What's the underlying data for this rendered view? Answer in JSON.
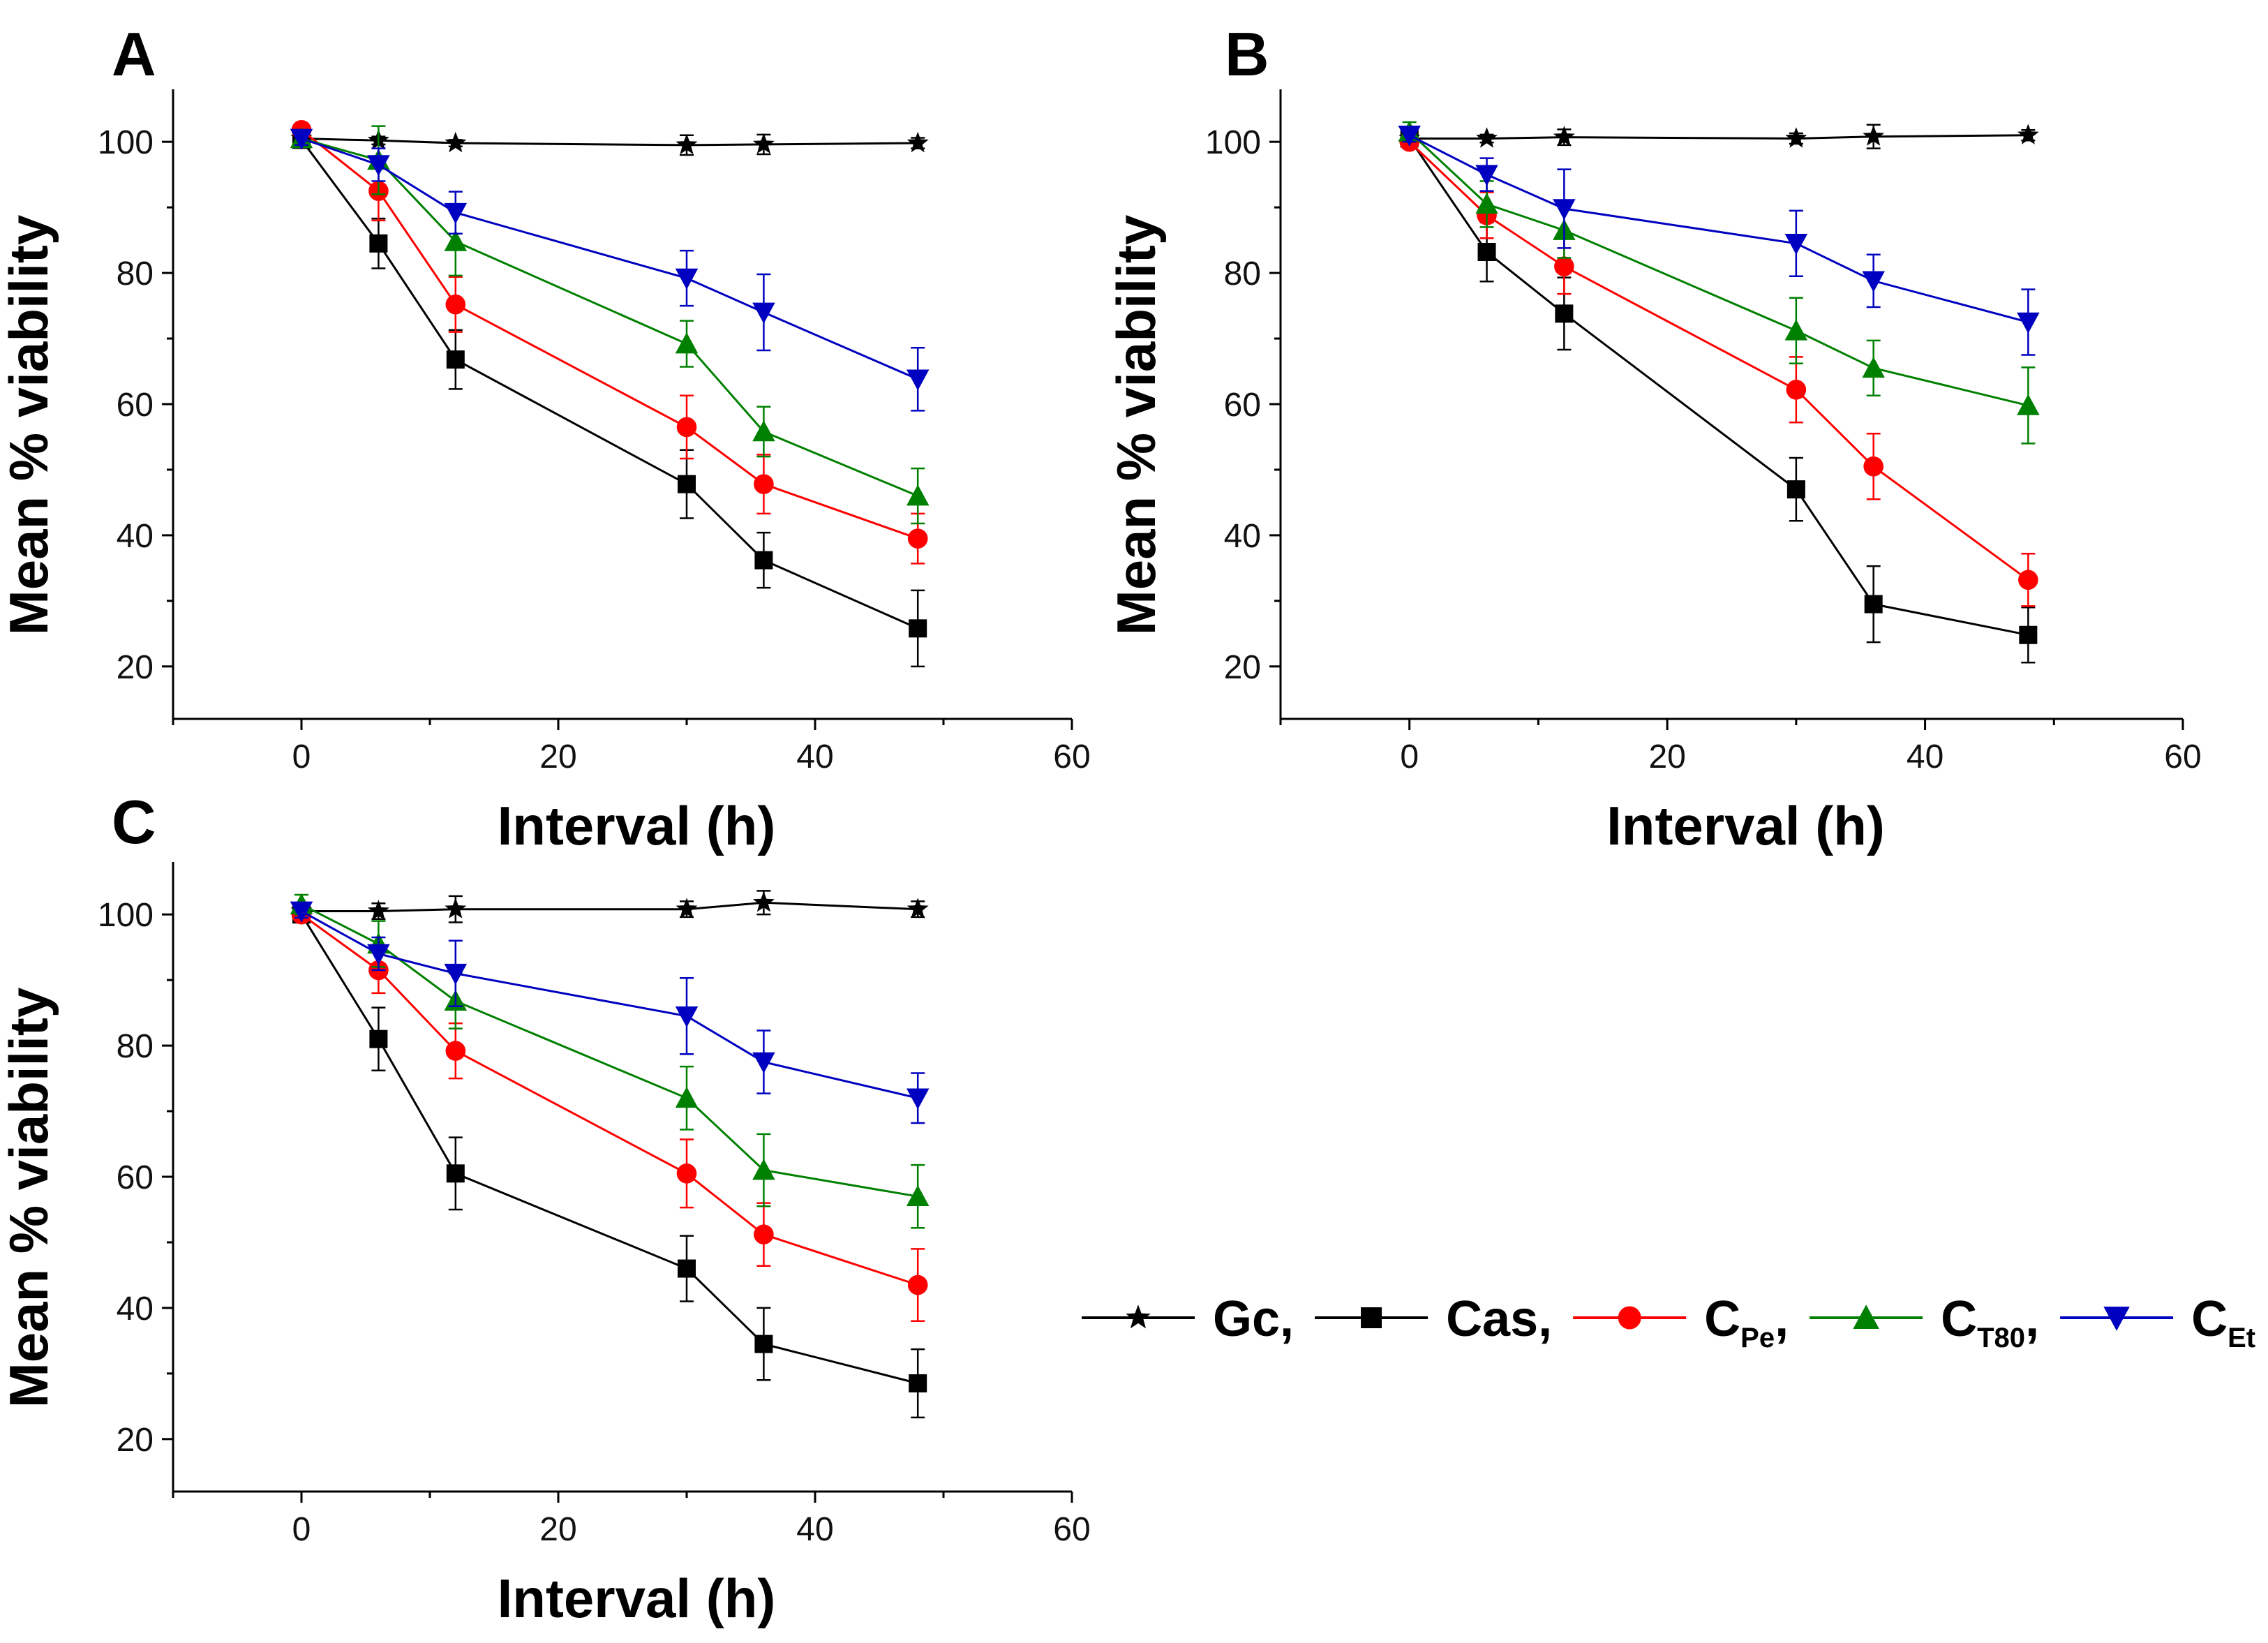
{
  "legend": [
    {
      "name": "Gc",
      "sub": "",
      "suffix": ",",
      "color": "#000000",
      "marker": "star"
    },
    {
      "name": "Cas",
      "sub": "",
      "suffix": ",",
      "color": "#000000",
      "marker": "square"
    },
    {
      "name": "C",
      "sub": "Pe",
      "suffix": ",",
      "color": "#ff0000",
      "marker": "circle"
    },
    {
      "name": "C",
      "sub": "T80",
      "suffix": ",",
      "color": "#008000",
      "marker": "triangle-up"
    },
    {
      "name": "C",
      "sub": "Et",
      "suffix": "",
      "color": "#0000c0",
      "marker": "triangle-down"
    }
  ],
  "chart_data": [
    {
      "type": "line",
      "panel": "A",
      "xlabel": "Interval (h)",
      "ylabel": "Mean % viability",
      "xlim": [
        -10,
        60
      ],
      "ylim": [
        12,
        108
      ],
      "xticks": [
        0,
        20,
        40,
        60
      ],
      "yticks": [
        20,
        40,
        60,
        80,
        100
      ],
      "x": [
        0,
        6,
        12,
        30,
        36,
        48
      ],
      "series": [
        {
          "name": "Gc",
          "values": [
            100.5,
            100.2,
            99.8,
            99.5,
            99.6,
            99.8
          ],
          "errors": [
            0.5,
            0.6,
            0.5,
            1.5,
            1.5,
            0.8
          ]
        },
        {
          "name": "Cas",
          "values": [
            100.3,
            84.5,
            66.8,
            47.8,
            36.2,
            25.8
          ],
          "errors": [
            1.0,
            3.8,
            4.5,
            5.2,
            4.2,
            5.8
          ]
        },
        {
          "name": "C_Pe",
          "values": [
            101.8,
            92.5,
            75.2,
            56.5,
            47.8,
            39.5
          ],
          "errors": [
            1.0,
            4.5,
            4.2,
            4.8,
            4.5,
            3.8
          ]
        },
        {
          "name": "C_T80",
          "values": [
            100.5,
            97.2,
            84.8,
            69.2,
            55.8,
            46.0
          ],
          "errors": [
            1.0,
            5.2,
            5.2,
            3.5,
            3.8,
            4.2
          ]
        },
        {
          "name": "C_Et",
          "values": [
            100.5,
            96.5,
            89.2,
            79.2,
            74.0,
            63.8
          ],
          "errors": [
            1.0,
            2.5,
            3.2,
            4.2,
            5.8,
            4.8
          ]
        }
      ]
    },
    {
      "type": "line",
      "panel": "B",
      "xlabel": "Interval (h)",
      "ylabel": "Mean % viability",
      "xlim": [
        -10,
        60
      ],
      "ylim": [
        12,
        108
      ],
      "xticks": [
        0,
        20,
        40,
        60
      ],
      "yticks": [
        20,
        40,
        60,
        80,
        100
      ],
      "x": [
        0,
        6,
        12,
        30,
        36,
        48
      ],
      "series": [
        {
          "name": "Gc",
          "values": [
            100.5,
            100.5,
            100.7,
            100.5,
            100.8,
            101.0
          ],
          "errors": [
            0.5,
            0.6,
            1.2,
            0.8,
            1.8,
            0.8
          ]
        },
        {
          "name": "Cas",
          "values": [
            100.5,
            83.2,
            73.8,
            47.0,
            29.5,
            24.8
          ],
          "errors": [
            1.0,
            4.5,
            5.5,
            4.8,
            5.8,
            4.2
          ]
        },
        {
          "name": "C_Pe",
          "values": [
            100.0,
            88.8,
            81.0,
            62.2,
            50.5,
            33.2
          ],
          "errors": [
            1.0,
            3.5,
            4.2,
            5.0,
            5.0,
            4.0
          ]
        },
        {
          "name": "C_T80",
          "values": [
            101.5,
            90.5,
            86.5,
            71.2,
            65.5,
            59.8
          ],
          "errors": [
            1.5,
            3.5,
            4.2,
            5.0,
            4.2,
            5.8
          ]
        },
        {
          "name": "C_Et",
          "values": [
            101.0,
            95.0,
            89.8,
            84.5,
            78.8,
            72.5
          ],
          "errors": [
            1.0,
            2.5,
            6.0,
            5.0,
            4.0,
            5.0
          ]
        }
      ]
    },
    {
      "type": "line",
      "panel": "C",
      "xlabel": "Interval (h)",
      "ylabel": "Mean % viability",
      "xlim": [
        -10,
        60
      ],
      "ylim": [
        12,
        108
      ],
      "xticks": [
        0,
        20,
        40,
        60
      ],
      "yticks": [
        20,
        40,
        60,
        80,
        100
      ],
      "x": [
        0,
        6,
        12,
        30,
        36,
        48
      ],
      "series": [
        {
          "name": "Gc",
          "values": [
            100.5,
            100.5,
            100.8,
            100.8,
            101.8,
            100.8
          ],
          "errors": [
            0.5,
            1.2,
            2.0,
            1.2,
            1.8,
            1.2
          ]
        },
        {
          "name": "Cas",
          "values": [
            100.0,
            81.0,
            60.5,
            46.0,
            34.5,
            28.5
          ],
          "errors": [
            1.0,
            4.8,
            5.5,
            5.0,
            5.5,
            5.2
          ]
        },
        {
          "name": "C_Pe",
          "values": [
            100.0,
            91.5,
            79.2,
            60.5,
            51.2,
            43.5
          ],
          "errors": [
            1.0,
            3.5,
            4.2,
            5.2,
            4.8,
            5.5
          ]
        },
        {
          "name": "C_T80",
          "values": [
            101.5,
            95.5,
            86.8,
            72.0,
            61.0,
            57.0
          ],
          "errors": [
            1.5,
            3.5,
            4.2,
            4.8,
            5.5,
            4.8
          ]
        },
        {
          "name": "C_Et",
          "values": [
            100.5,
            94.0,
            91.0,
            84.5,
            77.5,
            72.0
          ],
          "errors": [
            1.0,
            2.5,
            5.0,
            5.8,
            4.8,
            3.8
          ]
        }
      ]
    }
  ]
}
